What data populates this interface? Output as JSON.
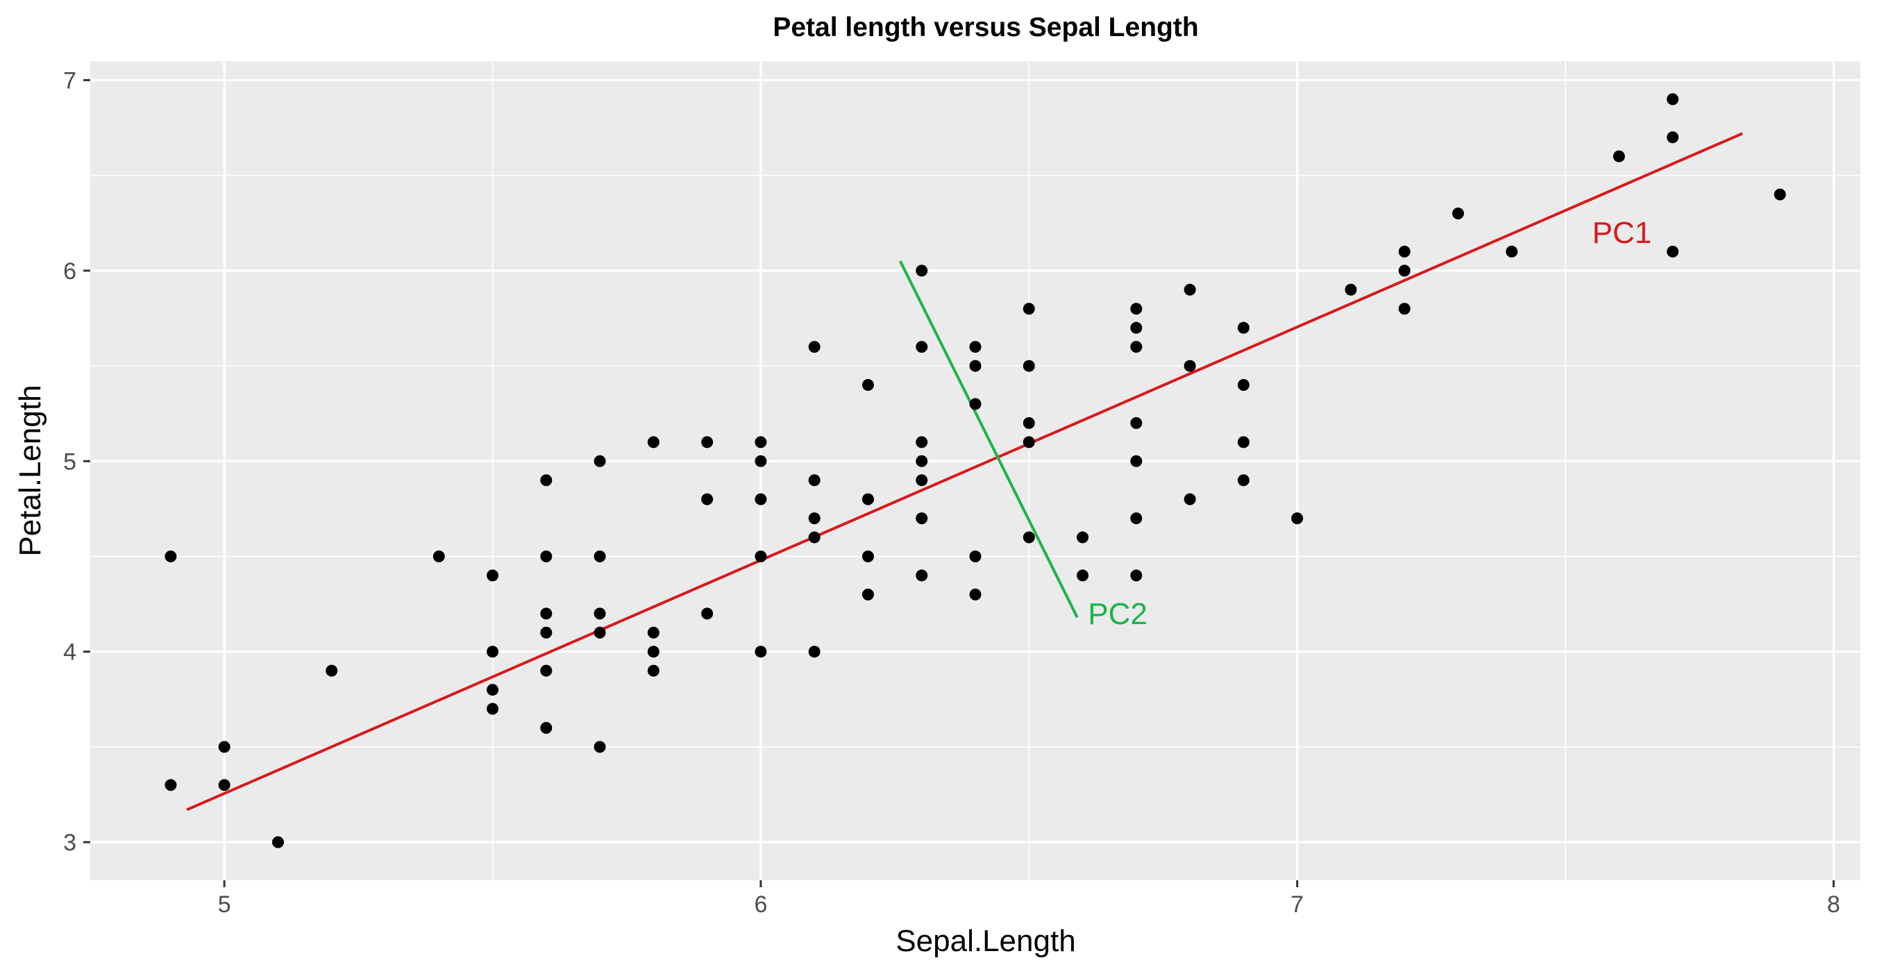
{
  "chart_data": {
    "type": "scatter",
    "title": "Petal length versus Sepal Length",
    "xlabel": "Sepal.Length",
    "ylabel": "Petal.Length",
    "xlim": [
      4.75,
      8.05
    ],
    "ylim": [
      2.8,
      7.1
    ],
    "x_ticks": [
      5,
      6,
      7,
      8
    ],
    "y_ticks": [
      3,
      4,
      5,
      6,
      7
    ],
    "grid": true,
    "panel_background": "#ebebeb",
    "point_color": "#000000",
    "points": [
      [
        4.9,
        4.5
      ],
      [
        4.9,
        3.3
      ],
      [
        5.0,
        3.5
      ],
      [
        5.0,
        3.3
      ],
      [
        5.1,
        3.0
      ],
      [
        5.2,
        3.9
      ],
      [
        5.4,
        4.5
      ],
      [
        5.5,
        4.4
      ],
      [
        5.5,
        4.0
      ],
      [
        5.5,
        3.8
      ],
      [
        5.5,
        3.7
      ],
      [
        5.6,
        4.9
      ],
      [
        5.6,
        4.5
      ],
      [
        5.6,
        4.2
      ],
      [
        5.6,
        4.1
      ],
      [
        5.6,
        3.9
      ],
      [
        5.6,
        3.6
      ],
      [
        5.7,
        5.0
      ],
      [
        5.7,
        4.5
      ],
      [
        5.7,
        4.2
      ],
      [
        5.7,
        4.1
      ],
      [
        5.7,
        3.5
      ],
      [
        5.8,
        5.1
      ],
      [
        5.8,
        4.1
      ],
      [
        5.8,
        4.0
      ],
      [
        5.8,
        3.9
      ],
      [
        5.9,
        5.1
      ],
      [
        5.9,
        4.8
      ],
      [
        5.9,
        4.2
      ],
      [
        6.0,
        5.1
      ],
      [
        6.0,
        5.0
      ],
      [
        6.0,
        4.8
      ],
      [
        6.0,
        4.5
      ],
      [
        6.0,
        4.0
      ],
      [
        6.1,
        5.6
      ],
      [
        6.1,
        4.9
      ],
      [
        6.1,
        4.7
      ],
      [
        6.1,
        4.6
      ],
      [
        6.1,
        4.0
      ],
      [
        6.2,
        5.4
      ],
      [
        6.2,
        4.8
      ],
      [
        6.2,
        4.5
      ],
      [
        6.2,
        4.3
      ],
      [
        6.3,
        6.0
      ],
      [
        6.3,
        5.6
      ],
      [
        6.3,
        5.1
      ],
      [
        6.3,
        5.0
      ],
      [
        6.3,
        4.9
      ],
      [
        6.3,
        4.7
      ],
      [
        6.3,
        4.4
      ],
      [
        6.4,
        5.6
      ],
      [
        6.4,
        5.5
      ],
      [
        6.4,
        5.3
      ],
      [
        6.4,
        4.5
      ],
      [
        6.4,
        4.3
      ],
      [
        6.5,
        5.8
      ],
      [
        6.5,
        5.5
      ],
      [
        6.5,
        5.2
      ],
      [
        6.5,
        5.1
      ],
      [
        6.5,
        4.6
      ],
      [
        6.6,
        4.6
      ],
      [
        6.6,
        4.4
      ],
      [
        6.7,
        5.8
      ],
      [
        6.7,
        5.7
      ],
      [
        6.7,
        5.6
      ],
      [
        6.7,
        5.2
      ],
      [
        6.7,
        5.0
      ],
      [
        6.7,
        4.7
      ],
      [
        6.7,
        4.4
      ],
      [
        6.8,
        5.9
      ],
      [
        6.8,
        5.5
      ],
      [
        6.8,
        4.8
      ],
      [
        6.9,
        5.7
      ],
      [
        6.9,
        5.4
      ],
      [
        6.9,
        5.1
      ],
      [
        6.9,
        4.9
      ],
      [
        7.0,
        4.7
      ],
      [
        7.1,
        5.9
      ],
      [
        7.2,
        6.1
      ],
      [
        7.2,
        6.0
      ],
      [
        7.2,
        5.8
      ],
      [
        7.3,
        6.3
      ],
      [
        7.4,
        6.1
      ],
      [
        7.6,
        6.6
      ],
      [
        7.7,
        6.9
      ],
      [
        7.7,
        6.7
      ],
      [
        7.7,
        6.1
      ],
      [
        7.9,
        6.4
      ]
    ],
    "lines": [
      {
        "name": "PC1",
        "color": "#d7191c",
        "x": [
          4.93,
          7.83
        ],
        "y": [
          3.17,
          6.72
        ]
      },
      {
        "name": "PC2",
        "color": "#1db34a",
        "x": [
          6.26,
          6.59
        ],
        "y": [
          6.05,
          4.18
        ]
      }
    ],
    "annotations": [
      {
        "text": "PC1",
        "x": 7.55,
        "y": 6.2,
        "color": "#d7191c"
      },
      {
        "text": "PC2",
        "x": 6.61,
        "y": 4.2,
        "color": "#1db34a"
      }
    ]
  }
}
